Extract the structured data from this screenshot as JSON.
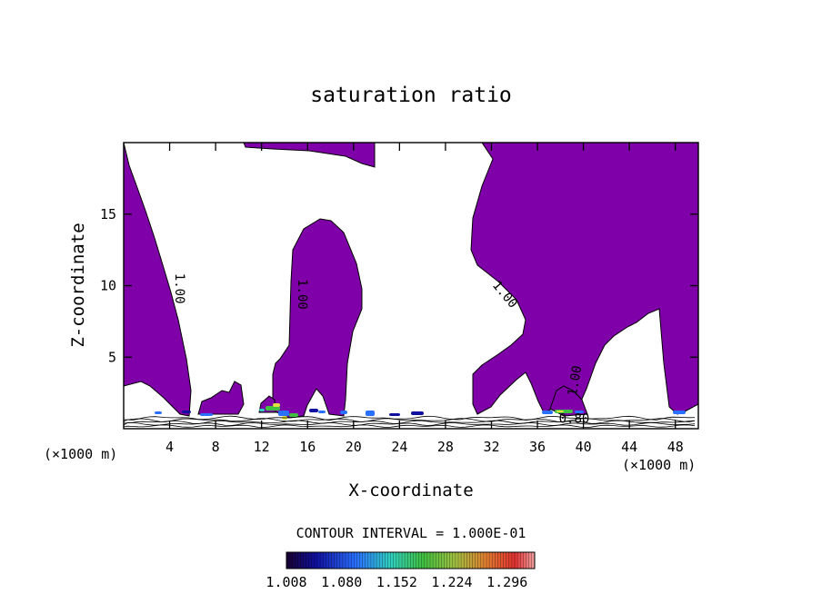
{
  "chart_data": {
    "type": "contour",
    "title": "saturation ratio",
    "xlabel": "X-coordinate",
    "ylabel": "Z-coordinate",
    "x_units": "(×1000 m)",
    "xlim": [
      0,
      50
    ],
    "ylim": [
      0,
      20
    ],
    "x_ticks": [
      4,
      8,
      12,
      16,
      20,
      24,
      28,
      32,
      36,
      40,
      44,
      48
    ],
    "y_ticks": [
      5,
      10,
      15
    ],
    "fill_color": "#7f00a8",
    "contour_labels": [
      {
        "text": "1.00",
        "x": 4.5,
        "y": 9.8,
        "rotate": 90
      },
      {
        "text": "1.00",
        "x": 15.2,
        "y": 9.4,
        "rotate": 90
      },
      {
        "text": "1.00",
        "x": 32.9,
        "y": 9.2,
        "rotate": 50
      },
      {
        "text": "1.00",
        "x": 39.6,
        "y": 3.3,
        "rotate": -80
      },
      {
        "text": "0.80",
        "x": 39.2,
        "y": 0.4,
        "rotate": 0
      }
    ],
    "contour_interval_text": "CONTOUR INTERVAL = 1.000E-01",
    "colorbar": {
      "ticks": [
        "1.008",
        "1.080",
        "1.152",
        "1.224",
        "1.296"
      ],
      "min": 1.008,
      "max": 1.332
    }
  }
}
